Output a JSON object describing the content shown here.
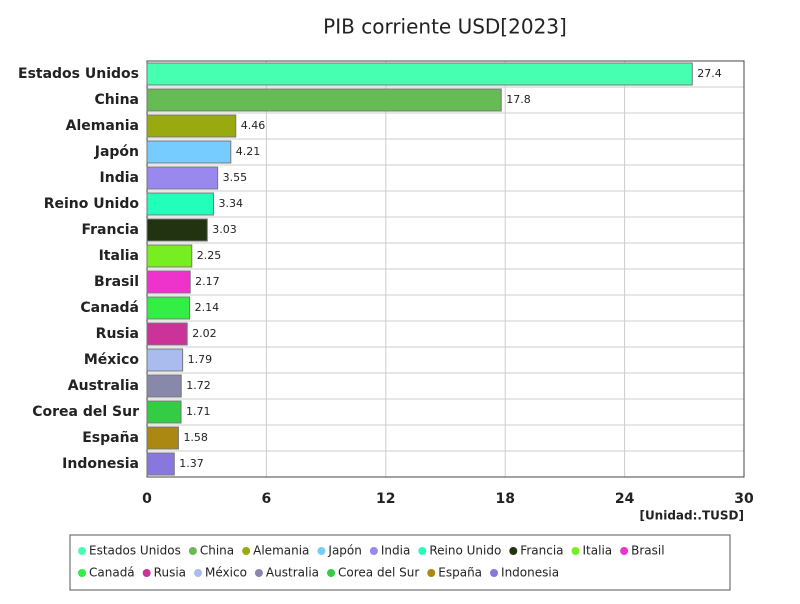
{
  "chart_data": {
    "type": "bar",
    "orientation": "horizontal",
    "title": "PIB corriente USD[2023]",
    "unit_label": "[Unidad:.TUSD]",
    "categories": [
      "Estados Unidos",
      "China",
      "Alemania",
      "Japón",
      "India",
      "Reino Unido",
      "Francia",
      "Italia",
      "Brasil",
      "Canadá",
      "Rusia",
      "México",
      "Australia",
      "Corea del Sur",
      "España",
      "Indonesia"
    ],
    "values": [
      27.4,
      17.8,
      4.46,
      4.21,
      3.55,
      3.34,
      3.03,
      2.25,
      2.17,
      2.14,
      2.02,
      1.79,
      1.72,
      1.71,
      1.58,
      1.37
    ],
    "colors": [
      "#46ffb0",
      "#66bb55",
      "#99aa11",
      "#77ccff",
      "#9988ee",
      "#22ffbb",
      "#223311",
      "#77ee22",
      "#ee33cc",
      "#33ee44",
      "#cc3399",
      "#aabbee",
      "#8888aa",
      "#33cc44",
      "#aa8811",
      "#8877dd"
    ],
    "xlim": [
      0,
      30
    ],
    "xticks": [
      0,
      6,
      12,
      18,
      24,
      30
    ],
    "grid": true,
    "legend": "bottom"
  }
}
